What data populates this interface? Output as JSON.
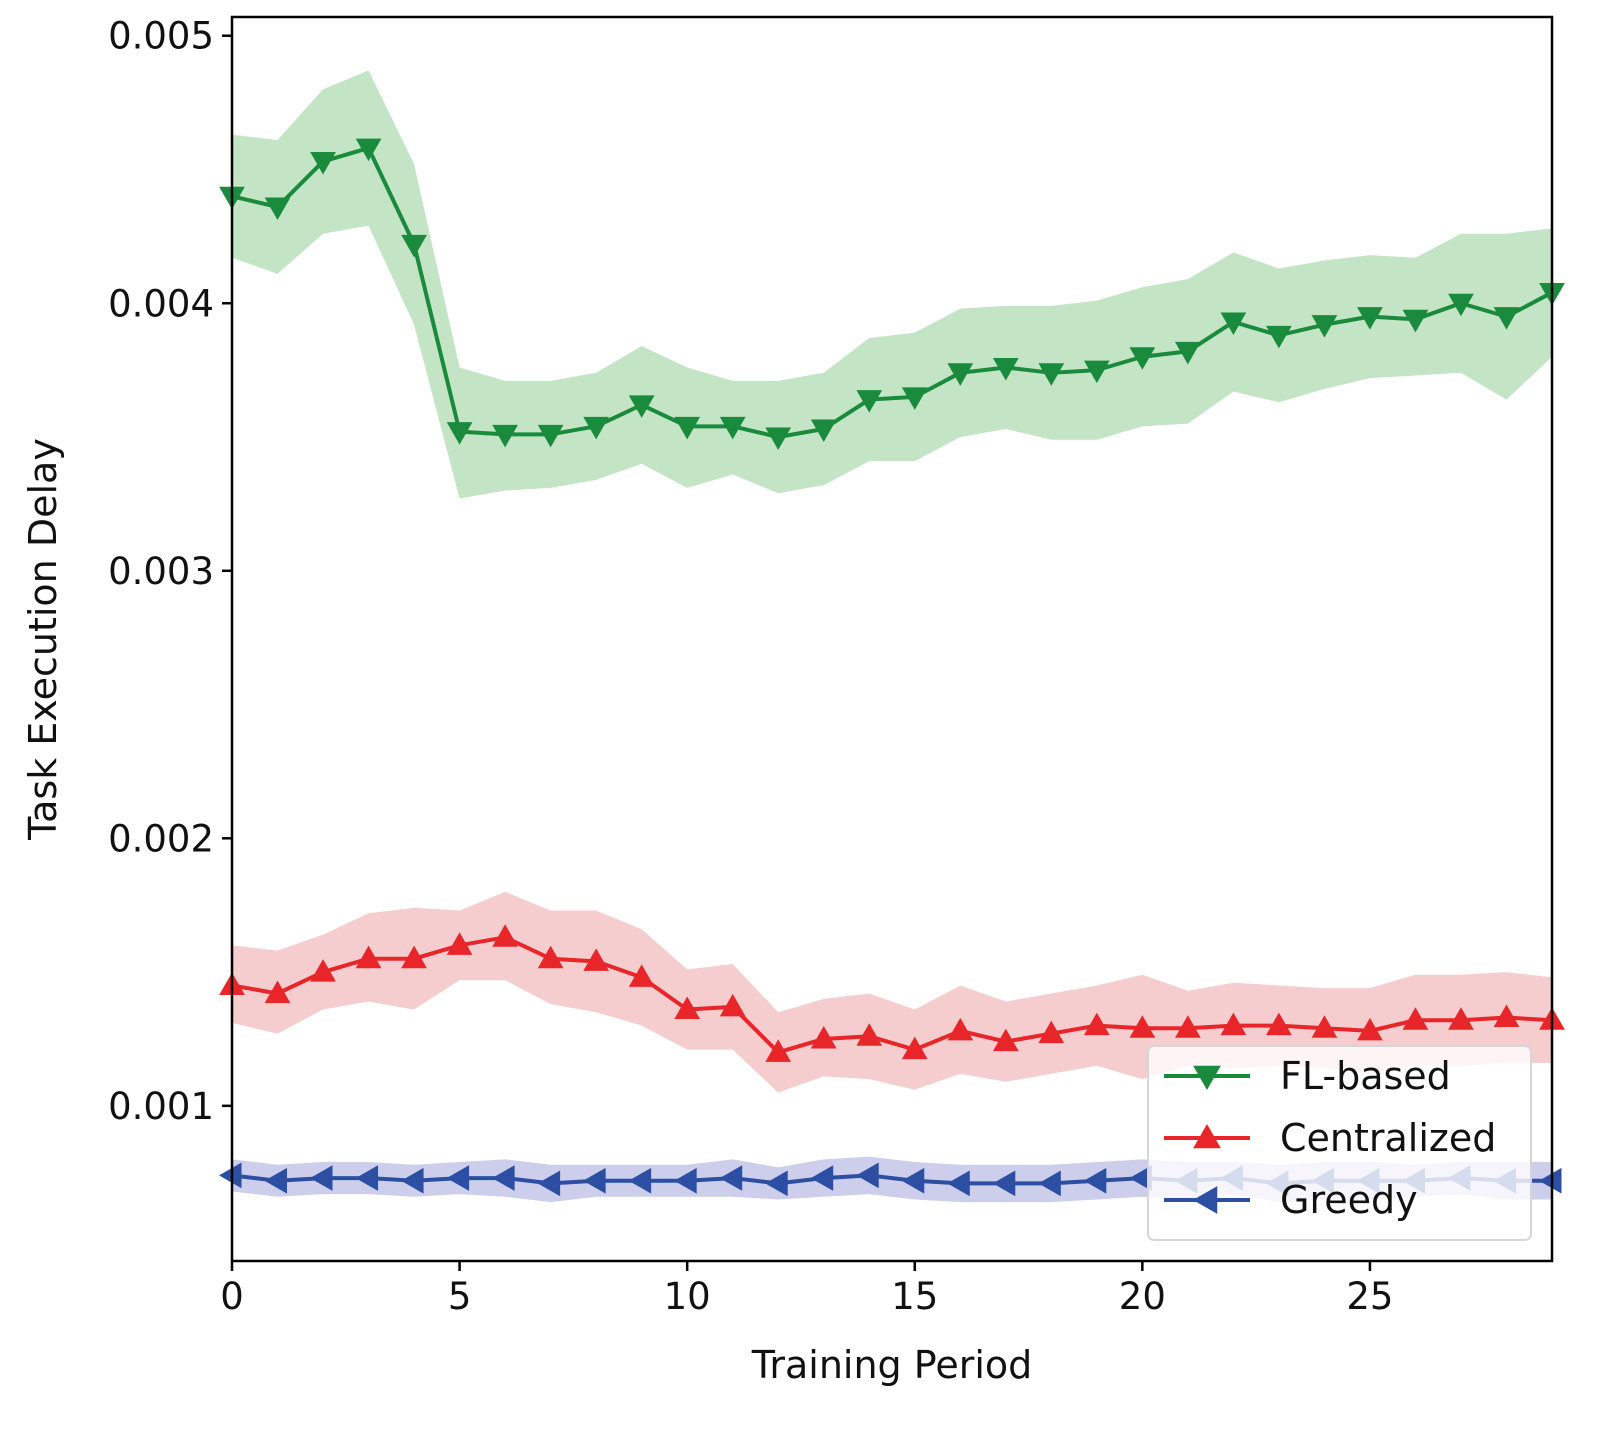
{
  "chart_data": {
    "type": "line",
    "title": "",
    "xlabel": "Training Period",
    "ylabel": "Task Execution Delay",
    "xlim": [
      0,
      29
    ],
    "ylim": [
      0.00042,
      0.00507
    ],
    "xticks": [
      0,
      5,
      10,
      15,
      20,
      25
    ],
    "xtick_labels": [
      "0",
      "5",
      "10",
      "15",
      "20",
      "25"
    ],
    "yticks": [
      0.001,
      0.002,
      0.003,
      0.004,
      0.005
    ],
    "ytick_labels": [
      "0.001",
      "0.002",
      "0.003",
      "0.004",
      "0.005"
    ],
    "grid": false,
    "legend_position": "lower-right",
    "x": [
      0,
      1,
      2,
      3,
      4,
      5,
      6,
      7,
      8,
      9,
      10,
      11,
      12,
      13,
      14,
      15,
      16,
      17,
      18,
      19,
      20,
      21,
      22,
      23,
      24,
      25,
      26,
      27,
      28,
      29
    ],
    "series": [
      {
        "name": "FL-based",
        "color": "#1a8a3c",
        "band_color": "#b9dfbb",
        "marker": "triangle-down",
        "values": [
          0.0044,
          0.00436,
          0.00453,
          0.00458,
          0.00422,
          0.00352,
          0.00351,
          0.00351,
          0.00354,
          0.00362,
          0.00354,
          0.00354,
          0.0035,
          0.00353,
          0.00364,
          0.00365,
          0.00374,
          0.00376,
          0.00374,
          0.00375,
          0.0038,
          0.00382,
          0.00393,
          0.00388,
          0.00392,
          0.00395,
          0.00394,
          0.004,
          0.00395,
          0.00404
        ],
        "band_upper": [
          0.00463,
          0.00461,
          0.0048,
          0.00487,
          0.00452,
          0.00376,
          0.00371,
          0.00371,
          0.00374,
          0.00384,
          0.00376,
          0.00371,
          0.00371,
          0.00374,
          0.00387,
          0.00389,
          0.00398,
          0.00399,
          0.00399,
          0.00401,
          0.00406,
          0.00409,
          0.00419,
          0.00413,
          0.00416,
          0.00418,
          0.00417,
          0.00426,
          0.00426,
          0.00428
        ],
        "band_lower": [
          0.00417,
          0.00411,
          0.00426,
          0.00429,
          0.00392,
          0.00327,
          0.0033,
          0.00331,
          0.00334,
          0.0034,
          0.00331,
          0.00336,
          0.00329,
          0.00332,
          0.00341,
          0.00341,
          0.0035,
          0.00353,
          0.00349,
          0.00349,
          0.00354,
          0.00355,
          0.00367,
          0.00363,
          0.00368,
          0.00372,
          0.00373,
          0.00374,
          0.00364,
          0.0038
        ]
      },
      {
        "name": "Centralized",
        "color": "#e8262a",
        "band_color": "#f5c4c6",
        "marker": "triangle-up",
        "values": [
          0.00145,
          0.00142,
          0.0015,
          0.00155,
          0.00155,
          0.0016,
          0.00163,
          0.00155,
          0.00154,
          0.00148,
          0.00136,
          0.00137,
          0.0012,
          0.00125,
          0.00126,
          0.00121,
          0.00128,
          0.00124,
          0.00127,
          0.0013,
          0.00129,
          0.00129,
          0.0013,
          0.0013,
          0.00129,
          0.00128,
          0.00132,
          0.00132,
          0.00133,
          0.00132
        ],
        "band_upper": [
          0.0016,
          0.00158,
          0.00164,
          0.00172,
          0.00174,
          0.00173,
          0.0018,
          0.00173,
          0.00173,
          0.00166,
          0.00151,
          0.00153,
          0.00135,
          0.0014,
          0.00142,
          0.00136,
          0.00145,
          0.00139,
          0.00142,
          0.00145,
          0.00149,
          0.00143,
          0.00146,
          0.00145,
          0.00144,
          0.00144,
          0.00149,
          0.00149,
          0.0015,
          0.00148
        ],
        "band_lower": [
          0.00131,
          0.00127,
          0.00136,
          0.00139,
          0.00136,
          0.00147,
          0.00147,
          0.00138,
          0.00135,
          0.0013,
          0.00121,
          0.00121,
          0.00105,
          0.00111,
          0.0011,
          0.00106,
          0.00112,
          0.00109,
          0.00112,
          0.00115,
          0.0011,
          0.00115,
          0.00114,
          0.00115,
          0.00114,
          0.00112,
          0.00115,
          0.00115,
          0.00116,
          0.00116
        ]
      },
      {
        "name": "Greedy",
        "color": "#2d4fa3",
        "band_color": "#c4c6e8",
        "marker": "triangle-left",
        "values": [
          0.00074,
          0.00072,
          0.00073,
          0.00073,
          0.00072,
          0.00073,
          0.00073,
          0.00071,
          0.00072,
          0.00072,
          0.00072,
          0.00073,
          0.00071,
          0.00073,
          0.00074,
          0.00072,
          0.00071,
          0.00071,
          0.00071,
          0.00072,
          0.00073,
          0.00072,
          0.00073,
          0.00071,
          0.00072,
          0.00072,
          0.00072,
          0.00073,
          0.00072,
          0.00072
        ],
        "band_upper": [
          0.0008,
          0.00078,
          0.00079,
          0.00079,
          0.00078,
          0.00079,
          0.0008,
          0.00078,
          0.00078,
          0.00078,
          0.00078,
          0.0008,
          0.00077,
          0.0008,
          0.00081,
          0.00079,
          0.00078,
          0.00078,
          0.00078,
          0.00079,
          0.0008,
          0.00079,
          0.00079,
          0.00078,
          0.00079,
          0.00079,
          0.00078,
          0.00079,
          0.00079,
          0.00079
        ],
        "band_lower": [
          0.00068,
          0.00066,
          0.00067,
          0.00067,
          0.00066,
          0.00067,
          0.00066,
          0.00064,
          0.00066,
          0.00066,
          0.00066,
          0.00066,
          0.00065,
          0.00066,
          0.00067,
          0.00065,
          0.00064,
          0.00064,
          0.00064,
          0.00065,
          0.00066,
          0.00065,
          0.00067,
          0.00064,
          0.00065,
          0.00065,
          0.00066,
          0.00067,
          0.00065,
          0.00065
        ]
      }
    ]
  }
}
